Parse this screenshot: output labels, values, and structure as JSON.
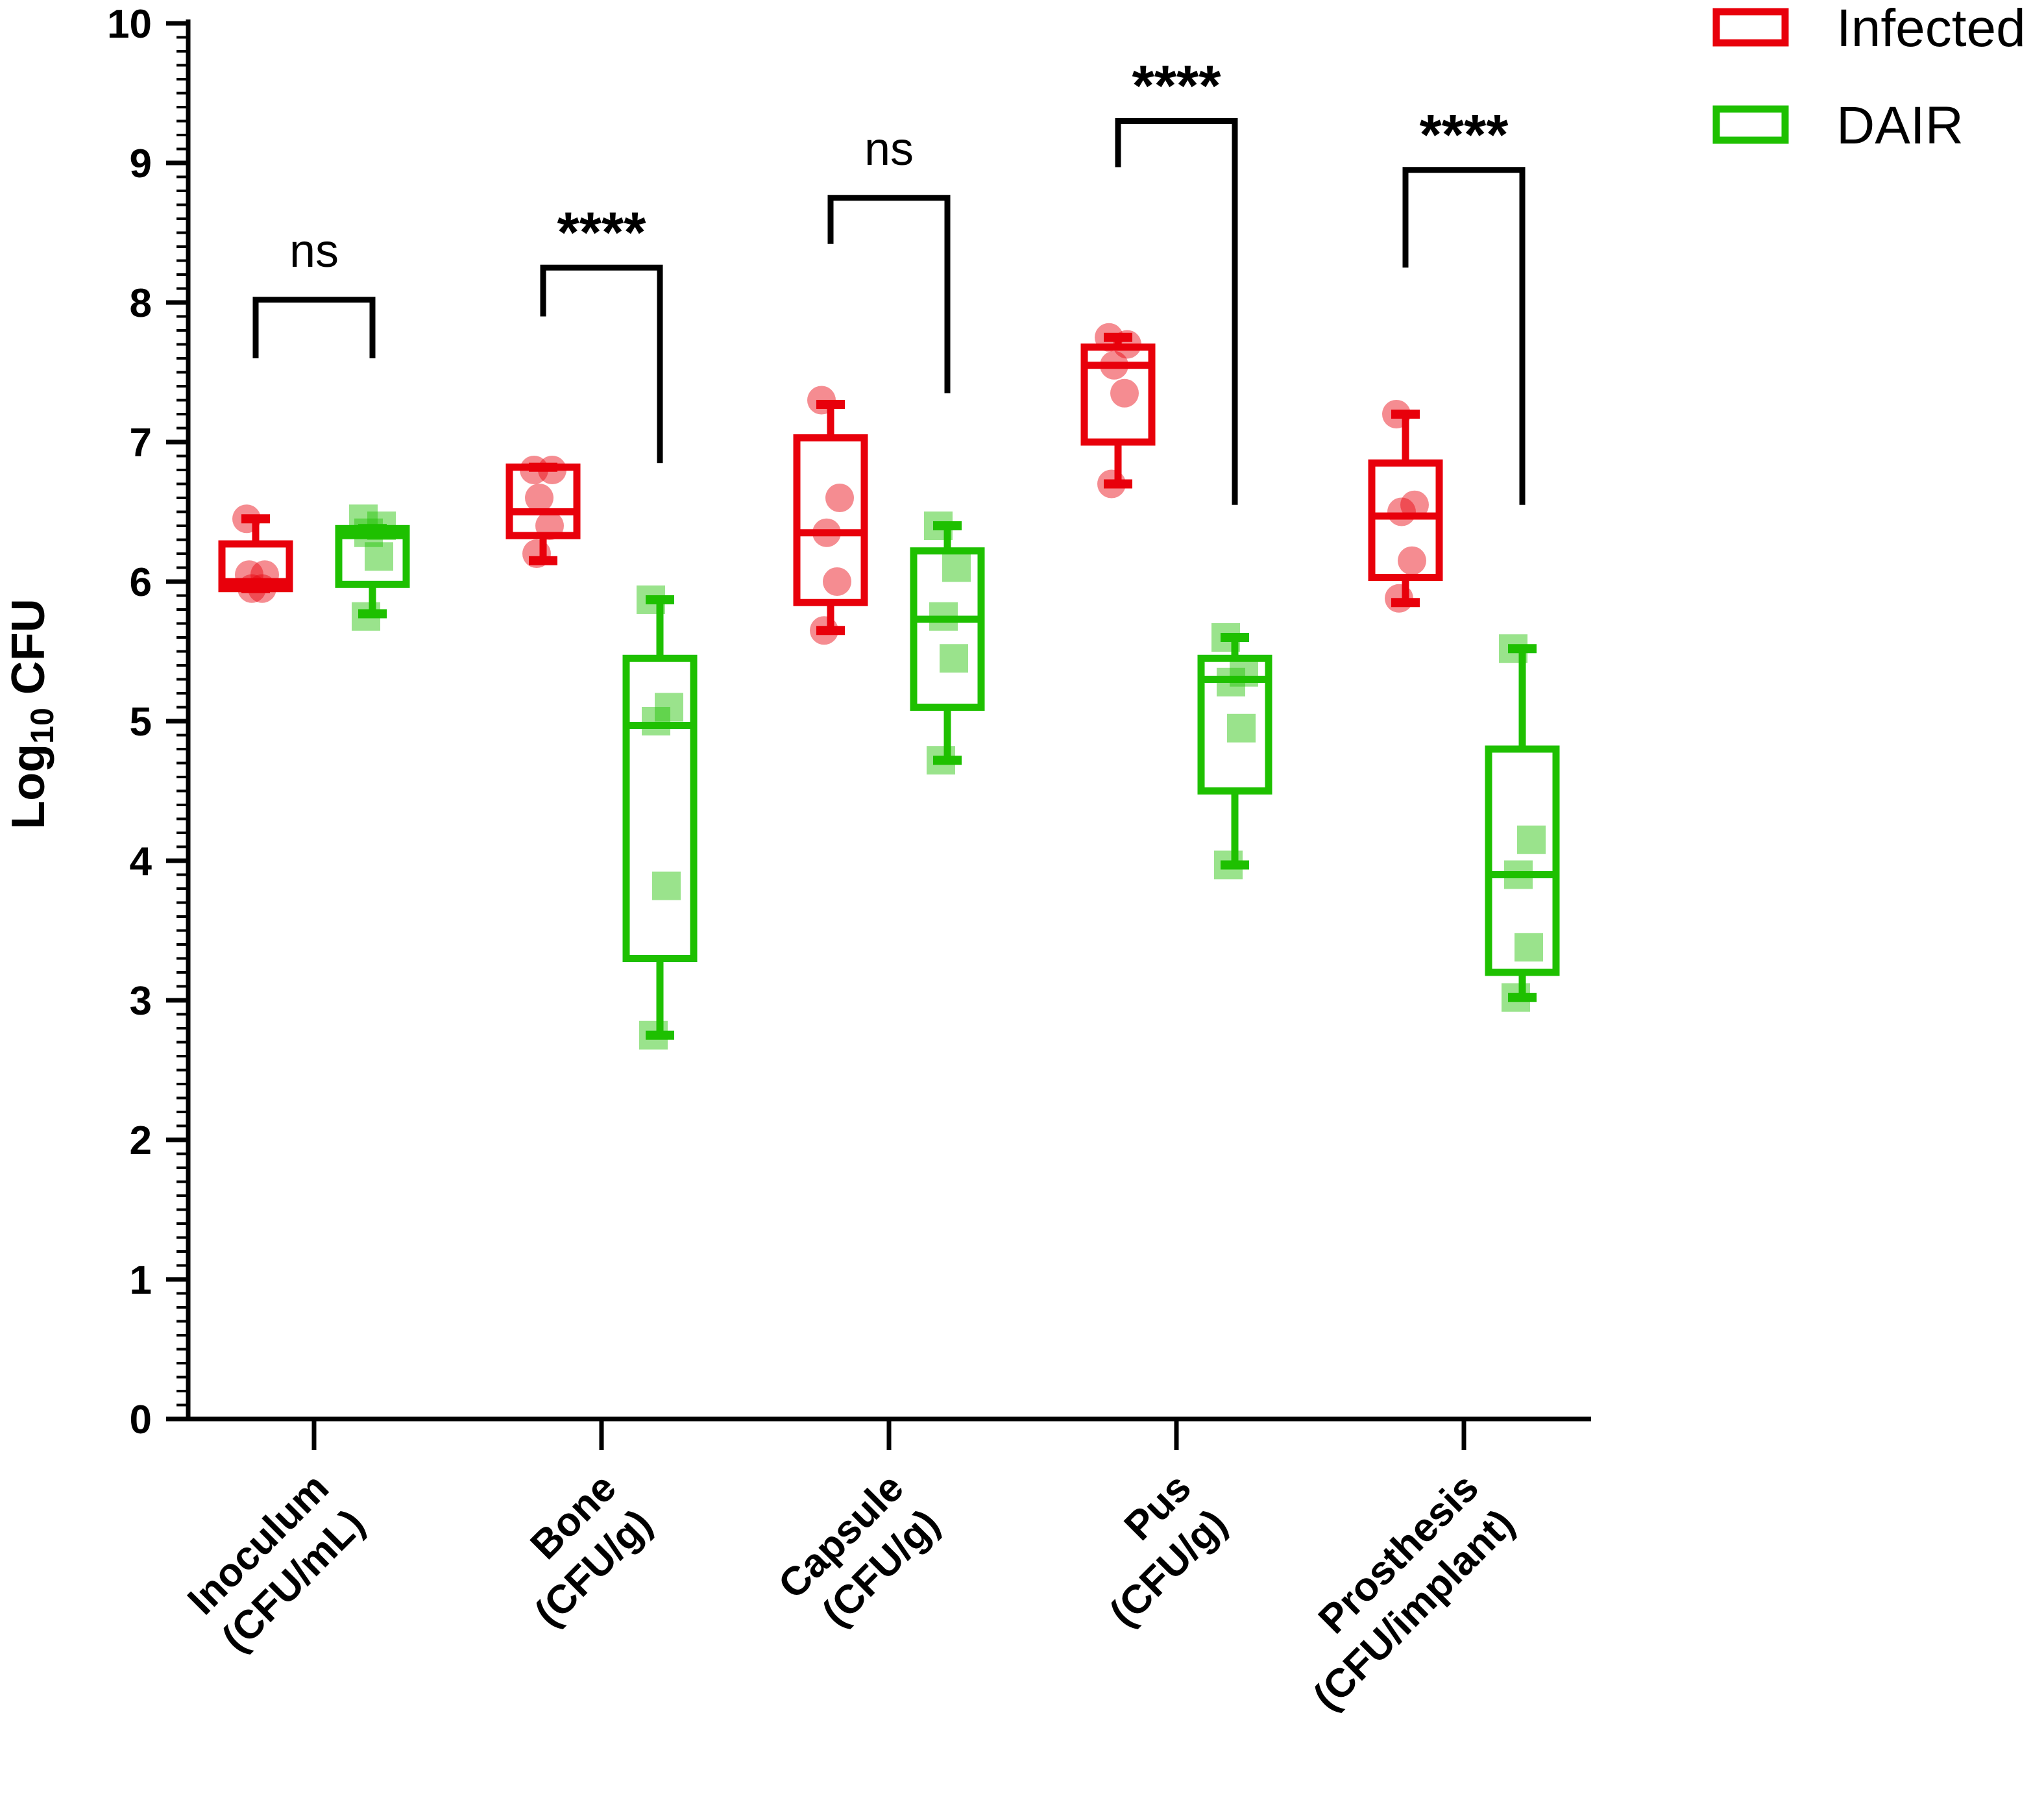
{
  "chart_data": {
    "type": "box",
    "ylabel_main": "Log",
    "ylabel_sub": "10",
    "ylabel_end": " CFU",
    "ylim": [
      0,
      10
    ],
    "yticks": [
      "0",
      "1",
      "2",
      "3",
      "4",
      "5",
      "6",
      "7",
      "8",
      "9",
      "10"
    ],
    "categories": [
      {
        "line1": "Inoculum",
        "line2": "(CFU/mL)"
      },
      {
        "line1": "Bone",
        "line2": "(CFU/g)"
      },
      {
        "line1": "Capsule",
        "line2": "(CFU/g)"
      },
      {
        "line1": "Pus",
        "line2": "(CFU/g)"
      },
      {
        "line1": "Prosthesis",
        "line2": "(CFU/implant)"
      }
    ],
    "series": [
      {
        "name": "Infected",
        "color": "#e8000b",
        "marker": "circle",
        "boxes": [
          {
            "min": 5.95,
            "q1": 5.95,
            "median": 6.0,
            "q3": 6.27,
            "max": 6.45,
            "points": [
              6.45,
              6.05,
              5.95,
              5.95,
              6.05
            ]
          },
          {
            "min": 6.15,
            "q1": 6.33,
            "median": 6.5,
            "q3": 6.82,
            "max": 6.82,
            "points": [
              6.8,
              6.8,
              6.6,
              6.4,
              6.2
            ]
          },
          {
            "min": 5.65,
            "q1": 5.85,
            "median": 6.35,
            "q3": 7.03,
            "max": 7.27,
            "points": [
              7.3,
              6.6,
              6.35,
              6.0,
              5.65
            ]
          },
          {
            "min": 6.7,
            "q1": 7.0,
            "median": 7.55,
            "q3": 7.68,
            "max": 7.75,
            "points": [
              7.75,
              7.7,
              7.55,
              7.35,
              6.7
            ]
          },
          {
            "min": 5.85,
            "q1": 6.03,
            "median": 6.47,
            "q3": 6.85,
            "max": 7.2,
            "points": [
              7.2,
              6.55,
              6.5,
              6.15,
              5.88
            ]
          }
        ]
      },
      {
        "name": "DAIR",
        "color": "#1ec000",
        "marker": "square",
        "boxes": [
          {
            "min": 5.77,
            "q1": 5.98,
            "median": 6.33,
            "q3": 6.38,
            "max": 6.38,
            "points": [
              6.45,
              6.4,
              6.35,
              6.18,
              5.75
            ]
          },
          {
            "min": 2.75,
            "q1": 3.3,
            "median": 4.97,
            "q3": 5.45,
            "max": 5.87,
            "points": [
              5.87,
              5.1,
              5.0,
              3.82,
              2.75
            ]
          },
          {
            "min": 4.72,
            "q1": 5.1,
            "median": 5.73,
            "q3": 6.22,
            "max": 6.4,
            "points": [
              6.4,
              6.1,
              5.75,
              5.45,
              4.72
            ]
          },
          {
            "min": 3.97,
            "q1": 4.5,
            "median": 5.3,
            "q3": 5.45,
            "max": 5.6,
            "points": [
              5.6,
              5.35,
              5.28,
              4.95,
              3.97
            ]
          },
          {
            "min": 3.02,
            "q1": 3.2,
            "median": 3.9,
            "q3": 4.8,
            "max": 5.52,
            "points": [
              5.52,
              4.15,
              3.9,
              3.38,
              3.02
            ]
          }
        ]
      }
    ],
    "significance": [
      {
        "label": "ns",
        "kind": "ns",
        "bracket_y": 8.02,
        "left_y": 7.6,
        "right_y": 7.6,
        "label_y": 8.35
      },
      {
        "label": "****",
        "kind": "star",
        "bracket_y": 8.25,
        "left_y": 7.9,
        "right_y": 6.85,
        "label_y": 8.55
      },
      {
        "label": "ns",
        "kind": "ns",
        "bracket_y": 8.75,
        "left_y": 8.42,
        "right_y": 7.35,
        "label_y": 9.08
      },
      {
        "label": "****",
        "kind": "star",
        "bracket_y": 9.3,
        "left_y": 8.97,
        "right_y": 6.55,
        "label_y": 9.6
      },
      {
        "label": "****",
        "kind": "star",
        "bracket_y": 8.95,
        "left_y": 8.25,
        "right_y": 6.55,
        "label_y": 9.25
      }
    ],
    "legend": [
      {
        "name": "Infected",
        "color": "#e8000b"
      },
      {
        "name": "DAIR",
        "color": "#1ec000"
      }
    ],
    "legend_position": "top-right"
  }
}
